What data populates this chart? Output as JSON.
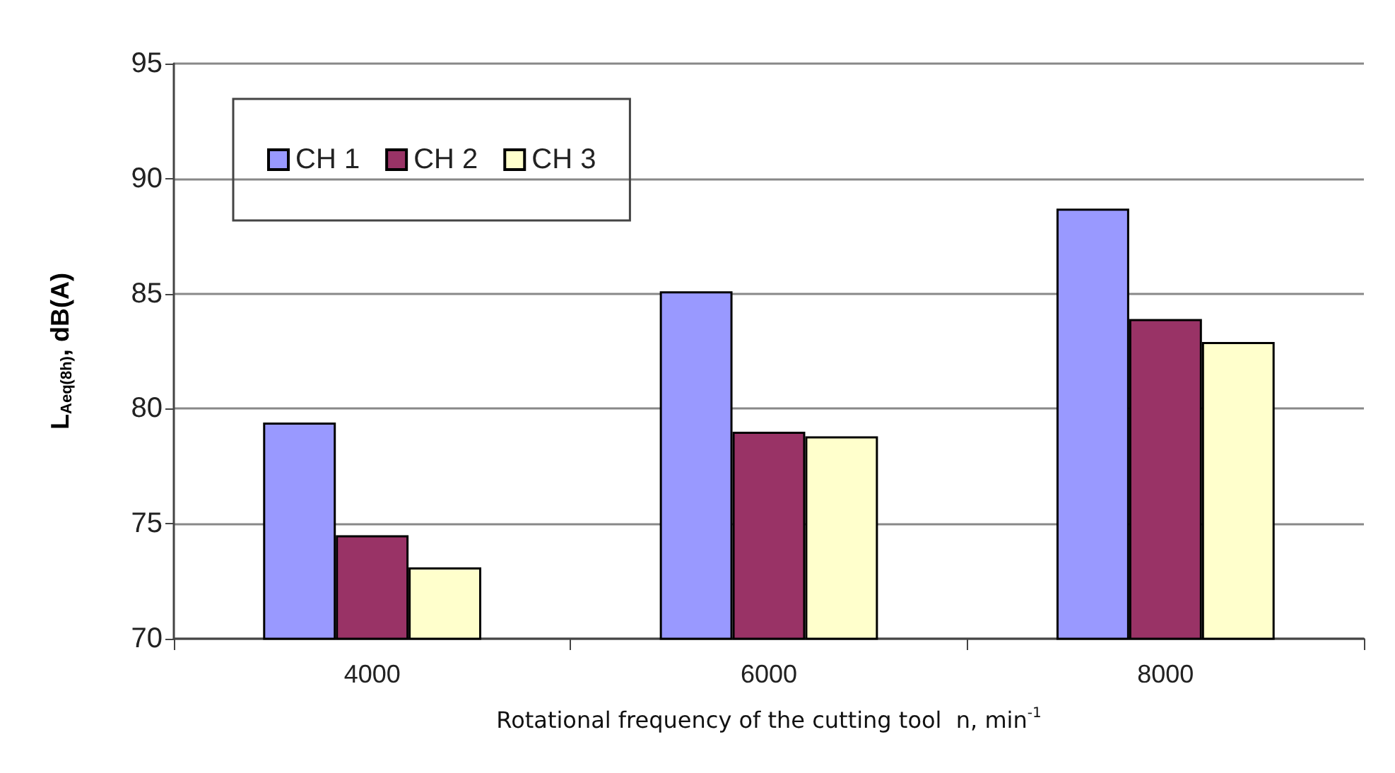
{
  "chart_data": {
    "type": "bar",
    "xlabel": "Rotational frequency of the cutting tool  n, min$^{-1}$",
    "ylabel": "L$_{Aeq(8h)}$, dB(A)",
    "categories": [
      "4000",
      "6000",
      "8000"
    ],
    "series": [
      {
        "name": "CH 1",
        "color": "#9999ff",
        "values": [
          79.4,
          85.1,
          88.7
        ]
      },
      {
        "name": "CH 2",
        "color": "#993366",
        "values": [
          74.5,
          79.0,
          83.9
        ]
      },
      {
        "name": "CH 3",
        "color": "#ffffcc",
        "values": [
          73.1,
          78.8,
          82.9
        ]
      }
    ],
    "ylim": [
      70,
      95
    ],
    "yticks": [
      70,
      75,
      80,
      85,
      90,
      95
    ],
    "grid": "y",
    "legend": "top left"
  }
}
